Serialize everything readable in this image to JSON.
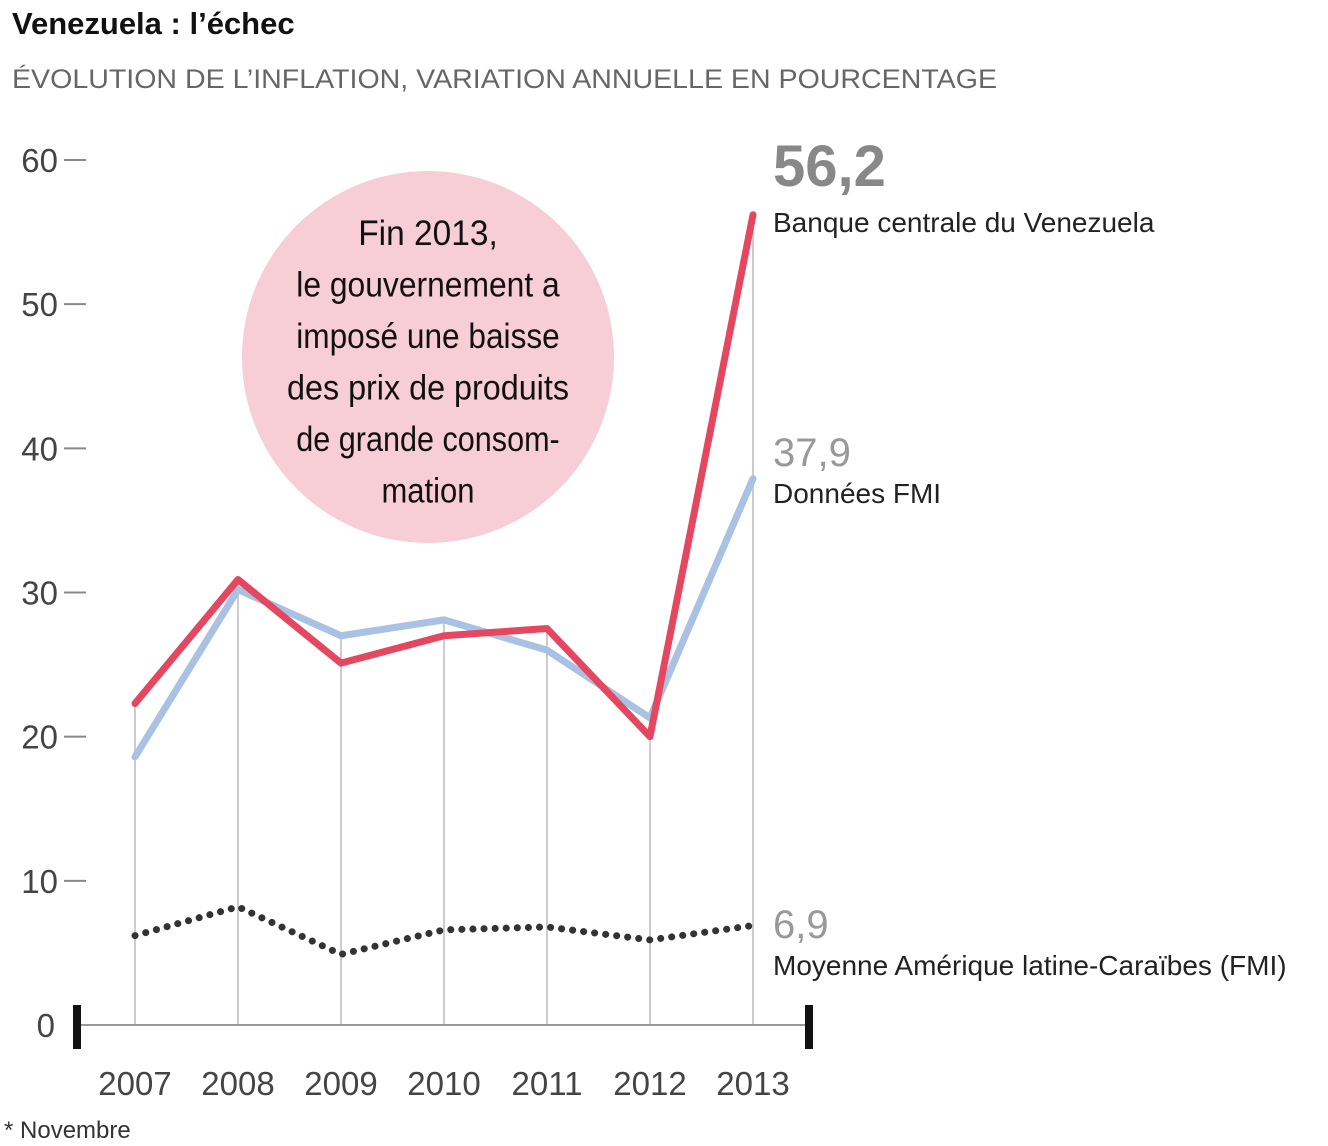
{
  "chart_data": {
    "type": "line",
    "title": "Venezuela : l’échec",
    "subtitle": "ÉVOLUTION DE L’INFLATION, VARIATION ANNUELLE EN POURCENTAGE",
    "xlabel": "",
    "ylabel": "",
    "ylim": [
      0,
      60
    ],
    "yticks": [
      "0",
      "10",
      "20",
      "30",
      "40",
      "50",
      "60"
    ],
    "categories": [
      "2007",
      "2008",
      "2009",
      "2010",
      "2011",
      "2012",
      "2013"
    ],
    "grid": "vertical",
    "series": [
      {
        "name": "Banque centrale du Venezuela",
        "color": "#e4475f",
        "style": "solid",
        "end_label": "56,2",
        "values": [
          22.3,
          30.9,
          25.1,
          27.0,
          27.5,
          20.0,
          56.2
        ]
      },
      {
        "name": "Données FMI",
        "color": "#a9c1e2",
        "style": "solid",
        "end_label": "37,9",
        "values": [
          18.6,
          30.2,
          27.0,
          28.1,
          26.0,
          21.3,
          37.9
        ]
      },
      {
        "name": "Moyenne Amérique latine-Caraïbes (FMI)",
        "color": "#333333",
        "style": "dotted",
        "end_label": "6,9",
        "values": [
          6.2,
          8.2,
          4.9,
          6.6,
          6.8,
          5.9,
          6.9
        ]
      }
    ],
    "annotation": {
      "lines": [
        "Fin 2013,",
        "le gouvernement a",
        "imposé une baisse",
        "des prix de produits",
        "de grande consom-",
        "mation"
      ],
      "color": "#f7cdd6"
    },
    "footnote": "* Novembre"
  }
}
